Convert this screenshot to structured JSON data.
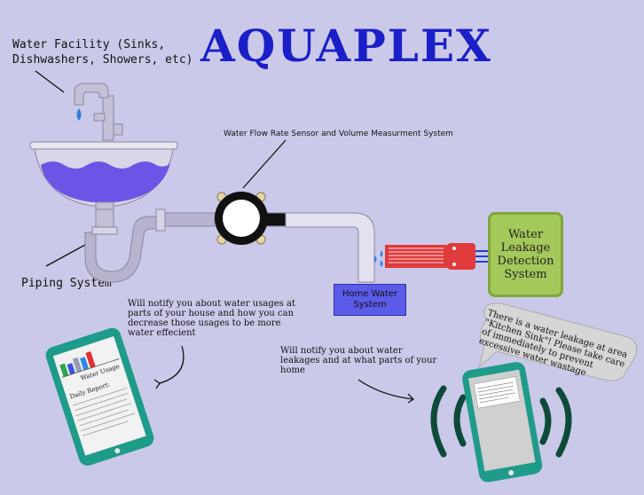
{
  "title": "AQUAPLEX",
  "labels": {
    "water_facility": "Water Facility (Sinks,\nDishwashers, Showers, etc)",
    "sensor": "Water Flow Rate Sensor and Volume Measurment System",
    "piping": "Piping System",
    "usage_note": "Will notify you about water usages at parts of your house and how you can decrease those usages to be more water effecient",
    "leak_note": "Will notify you about water leakages and at what parts of your home"
  },
  "home_system": "Home Water\nSystem",
  "detection_box": "Water\nLeakage\nDetection\nSystem",
  "speech_bubble": "There is a water leakage at area \"Kitchen Sink\"! Please take care of immediately to prevent excessive water wastage",
  "phone_left": {
    "chart_title": "Water Usage",
    "report_title": "Daily Report:"
  },
  "colors": {
    "title": "#1a1fc8",
    "background": "#cbc9e9",
    "pipe": "#b8b4d0",
    "water": "#6a55e6",
    "phone_frame": "#1f9b8a",
    "detector": "#a4c85a",
    "sensor_board": "#e03a3a"
  }
}
